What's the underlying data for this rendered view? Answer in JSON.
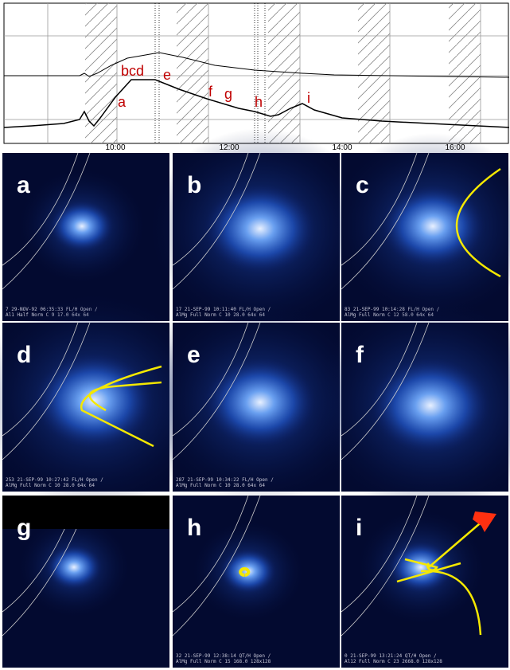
{
  "plot": {
    "labels": [
      "bcd",
      "e",
      "a",
      "f",
      "g",
      "h",
      "i"
    ],
    "x_ticks": [
      "10:00",
      "12:00",
      "14:00",
      "16:00"
    ]
  },
  "panels": [
    {
      "letter": "a",
      "caption": [
        "7 29-NOV-92 06:35:33 FL/H Open /",
        "Al1 Half Norm C 9 17.0 64x 64"
      ]
    },
    {
      "letter": "b",
      "caption": [
        "17 21-SEP-99 10:11:40 FL/H Open /",
        "AlMg Full Norm C 10 28.0 64x 64"
      ]
    },
    {
      "letter": "c",
      "caption": [
        "83 21-SEP-99 10:14:28 FL/H Open /",
        "AlMg Full Norm C 12 58.0 64x 64"
      ]
    },
    {
      "letter": "d",
      "caption": [
        "253 21-SEP-99 10:27:42 FL/H Open /",
        "AlMg Full Norm C 10 28.0 64x 64"
      ]
    },
    {
      "letter": "e",
      "caption": [
        "287 21-SEP-99 10:34:22 FL/H Open /",
        "AlMg Full Norm C 10 28.0 64x 64"
      ]
    },
    {
      "letter": "f"
    },
    {
      "letter": "g"
    },
    {
      "letter": "h",
      "caption": [
        "32 21-SEP-99 12:38:14 QT/H Open /",
        "AlMg Full Norm C 15 168.0 128x128"
      ]
    },
    {
      "letter": "i",
      "caption": [
        "0 21-SEP-99 13:21:24 QT/H Open /",
        "Al12 Full Norm C 23 2668.0 128x128"
      ]
    }
  ]
}
